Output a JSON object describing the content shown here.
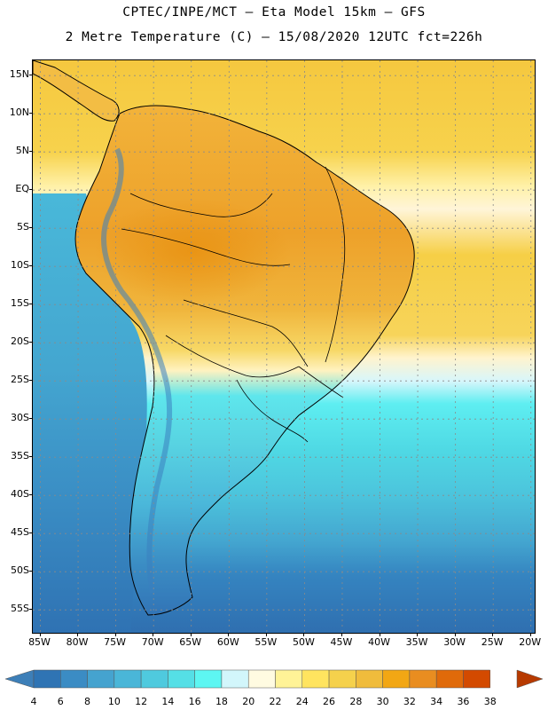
{
  "header": {
    "line1": "CPTEC/INPE/MCT –  Eta Model 15km – GFS",
    "line2": "2 Metre Temperature (C) – 15/08/2020 12UTC fct=226h"
  },
  "map": {
    "lat_labels": [
      "15N",
      "10N",
      "5N",
      "EQ",
      "5S",
      "10S",
      "15S",
      "20S",
      "25S",
      "30S",
      "35S",
      "40S",
      "45S",
      "50S",
      "55S"
    ],
    "lat_values": [
      15,
      10,
      5,
      0,
      -5,
      -10,
      -15,
      -20,
      -25,
      -30,
      -35,
      -40,
      -45,
      -50,
      -55
    ],
    "lon_labels": [
      "85W",
      "80W",
      "75W",
      "70W",
      "65W",
      "60W",
      "55W",
      "50W",
      "45W",
      "40W",
      "35W",
      "30W",
      "25W",
      "20W"
    ],
    "lon_values": [
      -85,
      -80,
      -75,
      -70,
      -65,
      -60,
      -55,
      -50,
      -45,
      -40,
      -35,
      -30,
      -25,
      -20
    ],
    "bounds": {
      "west": -86,
      "east": -19.5,
      "north": 17,
      "south": -58
    }
  },
  "colorbar": {
    "labels": [
      "4",
      "6",
      "8",
      "10",
      "12",
      "14",
      "16",
      "18",
      "20",
      "22",
      "24",
      "26",
      "28",
      "30",
      "32",
      "34",
      "36",
      "38"
    ],
    "colors": [
      "#3d7fb8",
      "#2f74b4",
      "#3b8cc4",
      "#45a3cf",
      "#4ab6d8",
      "#4fcade",
      "#55dfe6",
      "#5df6f2",
      "#d2f6fb",
      "#fffbe1",
      "#fff397",
      "#ffe45f",
      "#f5d14c",
      "#f0bc3c",
      "#f2a714",
      "#e98d20",
      "#e06a0a",
      "#d34a00",
      "#b73a00"
    ]
  }
}
